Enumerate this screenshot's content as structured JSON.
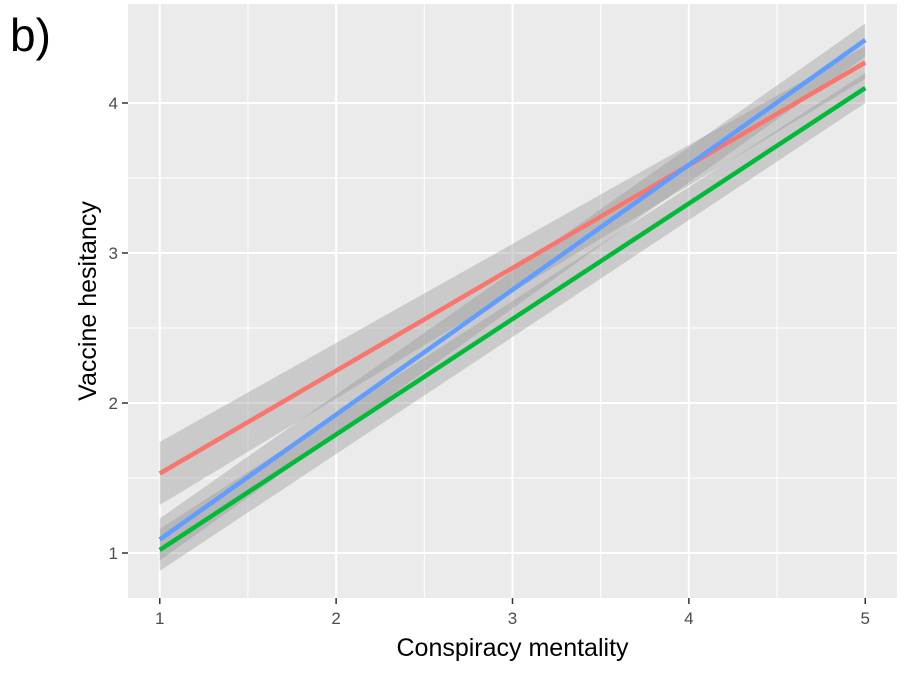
{
  "panel_label": "b)",
  "chart_data": {
    "type": "line",
    "title": "",
    "xlabel": "Conspiracy mentality",
    "ylabel": "Vaccine hesitancy",
    "xlim": [
      0.82,
      5.18
    ],
    "ylim": [
      0.7,
      4.66
    ],
    "x_ticks": [
      1,
      2,
      3,
      4,
      5
    ],
    "y_ticks": [
      1,
      2,
      3,
      4
    ],
    "grid": true,
    "legend": "none",
    "series": [
      {
        "color": "#F8766D",
        "x": [
          1,
          5
        ],
        "y": [
          1.53,
          4.27
        ],
        "ci_lower": [
          1.32,
          4.16
        ],
        "ci_upper": [
          1.74,
          4.38
        ]
      },
      {
        "color": "#00BA38",
        "x": [
          1,
          5
        ],
        "y": [
          1.02,
          4.1
        ],
        "ci_lower": [
          0.88,
          4.0
        ],
        "ci_upper": [
          1.16,
          4.2
        ]
      },
      {
        "color": "#619CFF",
        "x": [
          1,
          5
        ],
        "y": [
          1.09,
          4.42
        ],
        "ci_lower": [
          0.95,
          4.31
        ],
        "ci_upper": [
          1.23,
          4.53
        ]
      }
    ]
  }
}
